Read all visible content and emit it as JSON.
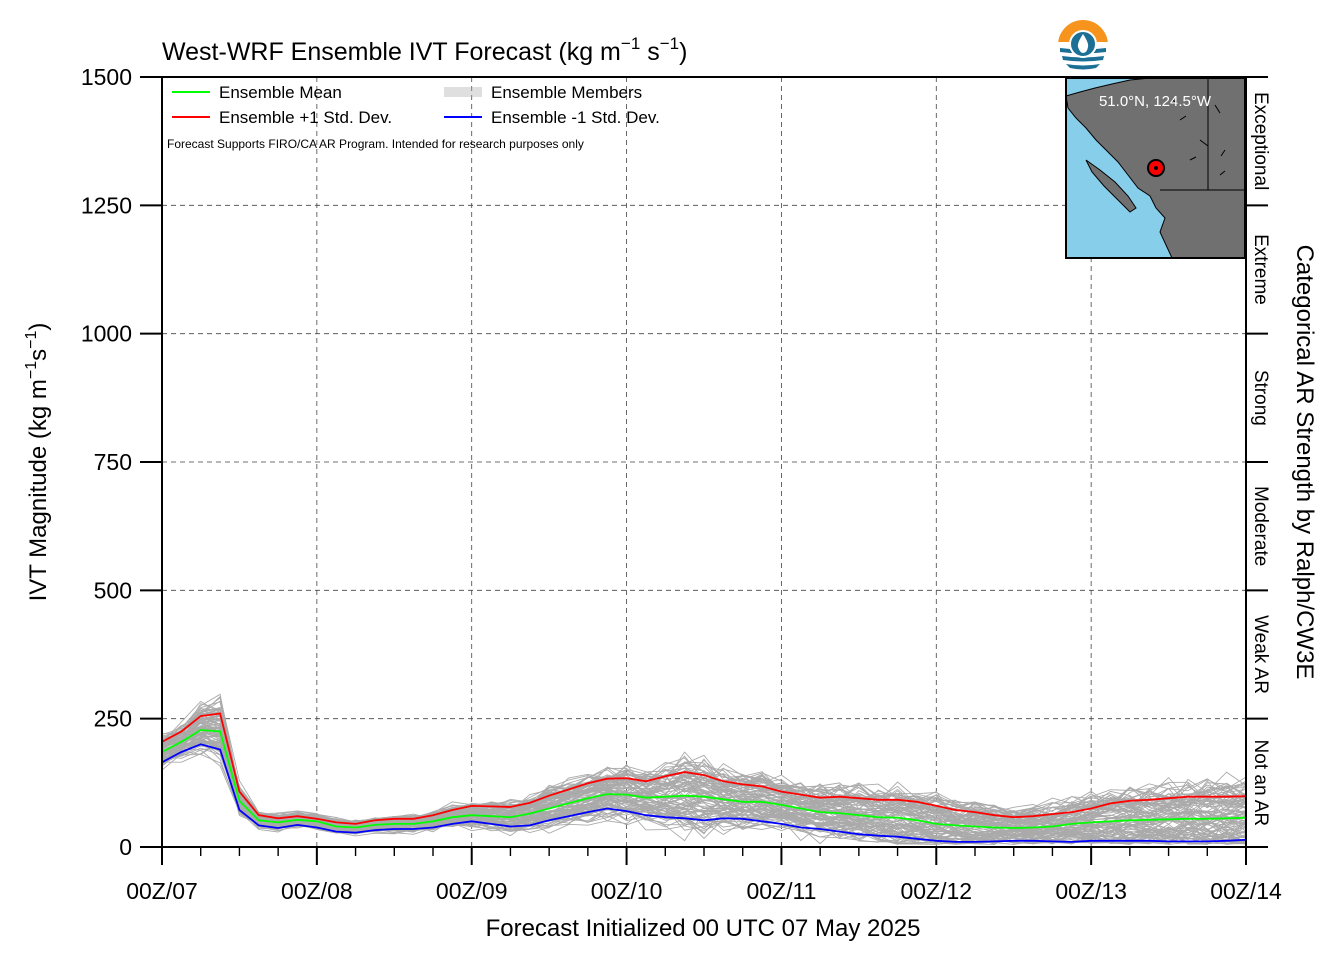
{
  "chart_data": {
    "type": "line",
    "title": "West-WRF Ensemble IVT Forecast (kg m⁻¹ s⁻¹)",
    "title_parts": {
      "base": "West-WRF Ensemble IVT Forecast (kg m",
      "exp1": "−1",
      "mid": " s",
      "exp2": "−1",
      "end": ")"
    },
    "xlabel": "Forecast Initialized 00 UTC 07 May 2025",
    "ylabel_parts": {
      "base": "IVT Magnitude (kg m",
      "exp1": "−1",
      "mid": "s",
      "exp2": "−1",
      "end": ")"
    },
    "right_axis_label": "Categorical AR Strength by Ralph/CW3E",
    "ylim": [
      0,
      1500
    ],
    "xlim": [
      0,
      168
    ],
    "y_ticks": [
      0,
      250,
      500,
      750,
      1000,
      1250,
      1500
    ],
    "y_tick_labels": [
      "0",
      "250",
      "500",
      "750",
      "1000",
      "1250",
      "1500"
    ],
    "x_ticks": [
      0,
      24,
      48,
      72,
      96,
      120,
      144,
      168
    ],
    "x_tick_labels": [
      "00Z/07",
      "00Z/08",
      "00Z/09",
      "00Z/10",
      "00Z/11",
      "00Z/12",
      "00Z/13",
      "00Z/14"
    ],
    "grid": true,
    "categories_right": [
      {
        "label": "Not an AR",
        "range": [
          0,
          250
        ]
      },
      {
        "label": "Weak AR",
        "range": [
          250,
          500
        ]
      },
      {
        "label": "Moderate",
        "range": [
          500,
          750
        ]
      },
      {
        "label": "Strong",
        "range": [
          750,
          1000
        ]
      },
      {
        "label": "Extreme",
        "range": [
          1000,
          1250
        ]
      },
      {
        "label": "Exceptional",
        "range": [
          1250,
          1500
        ]
      }
    ],
    "legend": {
      "placement": "top-left",
      "entries": [
        {
          "label": "Ensemble Mean",
          "color": "#00ff00"
        },
        {
          "label": "Ensemble Members",
          "color": "#aaaaaa"
        },
        {
          "label": "Ensemble +1 Std. Dev.",
          "color": "#ff0000"
        },
        {
          "label": "Ensemble -1 Std. Dev.",
          "color": "#0000ff"
        }
      ]
    },
    "annotation": "Forecast Supports FIRO/CA AR Program. Intended for research purposes only",
    "inset_map_label": "51.0°N, 124.5°W",
    "x": [
      0,
      3,
      6,
      9,
      12,
      15,
      18,
      21,
      24,
      27,
      30,
      33,
      36,
      39,
      42,
      45,
      48,
      51,
      54,
      57,
      60,
      63,
      66,
      69,
      72,
      75,
      78,
      81,
      84,
      87,
      90,
      93,
      96,
      99,
      102,
      105,
      108,
      111,
      114,
      117,
      120,
      123,
      126,
      129,
      132,
      135,
      138,
      141,
      144,
      147,
      150,
      153,
      156,
      159,
      162,
      165,
      168
    ],
    "series": [
      {
        "name": "Ensemble Mean",
        "color": "#00ff00",
        "values": [
          185,
          205,
          228,
          225,
          90,
          52,
          48,
          53,
          50,
          40,
          38,
          43,
          45,
          45,
          50,
          58,
          62,
          60,
          58,
          65,
          75,
          85,
          95,
          103,
          102,
          96,
          98,
          100,
          98,
          93,
          88,
          88,
          82,
          75,
          68,
          66,
          62,
          58,
          57,
          52,
          45,
          42,
          40,
          38,
          37,
          38,
          40,
          45,
          48,
          50,
          52,
          53,
          54,
          55,
          55,
          56,
          57
        ]
      },
      {
        "name": "Ensemble +1 Std. Dev.",
        "color": "#ff0000",
        "values": [
          205,
          225,
          255,
          260,
          108,
          62,
          56,
          60,
          55,
          48,
          45,
          52,
          55,
          55,
          62,
          72,
          80,
          79,
          78,
          86,
          100,
          112,
          124,
          133,
          134,
          128,
          138,
          146,
          140,
          128,
          122,
          118,
          108,
          102,
          96,
          98,
          95,
          92,
          92,
          88,
          80,
          72,
          68,
          62,
          58,
          60,
          64,
          68,
          75,
          85,
          90,
          92,
          95,
          98,
          98,
          98,
          99
        ]
      },
      {
        "name": "Ensemble -1 Std. Dev.",
        "color": "#0000ff",
        "values": [
          165,
          185,
          200,
          190,
          72,
          42,
          37,
          43,
          38,
          30,
          28,
          33,
          35,
          35,
          38,
          45,
          50,
          45,
          40,
          42,
          52,
          60,
          68,
          75,
          70,
          62,
          58,
          56,
          52,
          56,
          55,
          50,
          45,
          38,
          35,
          30,
          25,
          22,
          20,
          16,
          12,
          10,
          10,
          11,
          12,
          12,
          11,
          10,
          12,
          12,
          12,
          12,
          11,
          11,
          11,
          12,
          14
        ]
      }
    ],
    "members_count": 100,
    "members_color": "#aaaaaa"
  }
}
